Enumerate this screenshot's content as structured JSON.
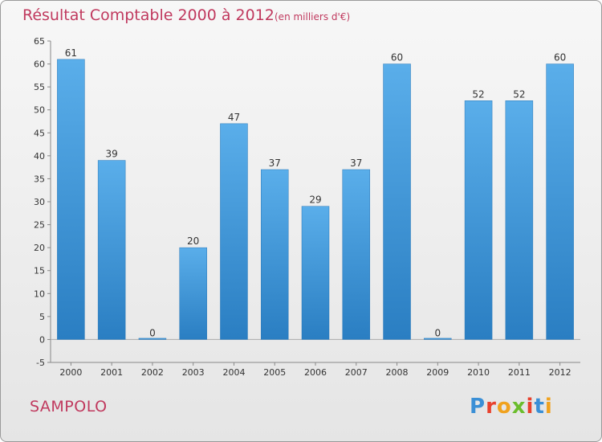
{
  "title": "Résultat Comptable 2000 à 2012",
  "subtitle": "(en milliers d'€)",
  "location": "SAMPOLO",
  "brand": {
    "text": "Proxiti",
    "letter_colors": [
      "#3a8fd6",
      "#e8412d",
      "#f0a21e",
      "#6bbd2c",
      "#e8412d",
      "#3a8fd6",
      "#f0a21e"
    ]
  },
  "colors": {
    "bar": "#4a9ee0",
    "title": "#c0395e"
  },
  "chart_data": {
    "type": "bar",
    "categories": [
      "2000",
      "2001",
      "2002",
      "2003",
      "2004",
      "2005",
      "2006",
      "2007",
      "2008",
      "2009",
      "2010",
      "2011",
      "2012"
    ],
    "values": [
      61,
      39,
      0,
      20,
      47,
      37,
      29,
      37,
      60,
      0,
      52,
      52,
      60
    ],
    "ylim": [
      -5,
      65
    ],
    "yticks": [
      -5,
      0,
      5,
      10,
      15,
      20,
      25,
      30,
      35,
      40,
      45,
      50,
      55,
      60,
      65
    ],
    "grid": false,
    "xlabel": "",
    "ylabel": ""
  }
}
